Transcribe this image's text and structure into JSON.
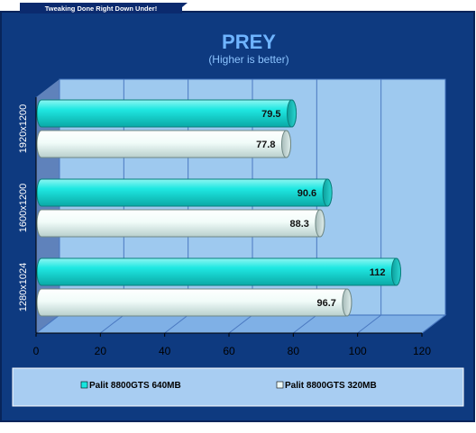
{
  "banner": "Tweaking Done Right Down Under!",
  "colors": {
    "frame": "#0b2a6e",
    "background": "#0e3a80",
    "plot": "#9ec9ef",
    "wall_side": "#5f82bb",
    "floor": "#7fb0e6",
    "gridline": "#4a78c0",
    "series_640": "#17e6e0",
    "series_320": "#eefbf8",
    "legend_box": "#a8cdf2",
    "value_text": "#111111",
    "title_text": "#6fb4ff",
    "tick_text": "#000000"
  },
  "chart_data": {
    "type": "bar",
    "orientation": "horizontal",
    "style": "3d-cylinder",
    "title": "PREY",
    "subtitle": "(Higher is better)",
    "categories": [
      "1920x1200",
      "1600x1200",
      "1280x1024"
    ],
    "series": [
      {
        "name": "Palit 8800GTS 640MB",
        "values": [
          79.5,
          90.6,
          112
        ],
        "value_labels": [
          "79.5",
          "90.6",
          "112"
        ]
      },
      {
        "name": "Palit 8800GTS 320MB",
        "values": [
          77.8,
          88.3,
          96.7
        ],
        "value_labels": [
          "77.8",
          "88.3",
          "96.7"
        ]
      }
    ],
    "xlim": [
      0,
      120
    ],
    "xticks": [
      "0",
      "20",
      "40",
      "60",
      "80",
      "100",
      "120"
    ],
    "grid": true,
    "legend_position": "bottom"
  }
}
